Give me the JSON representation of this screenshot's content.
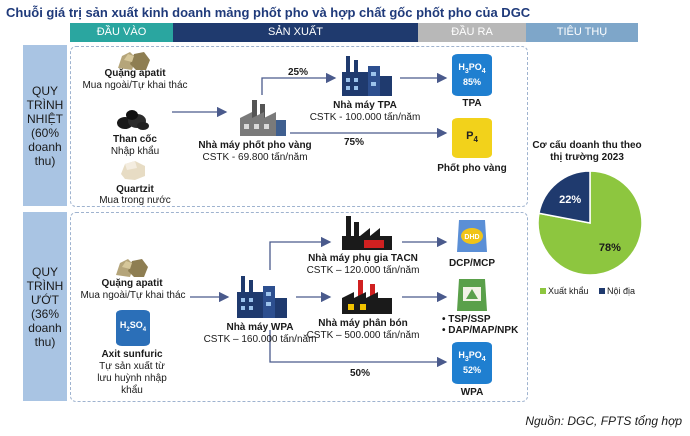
{
  "title": "Chuỗi giá trị sản xuất kinh doanh mảng phốt pho và hợp chất gốc phốt pho của DGC",
  "headers": [
    "ĐẦU VÀO",
    "SẢN XUẤT",
    "ĐẦU RA",
    "TIÊU THỤ"
  ],
  "colors": {
    "input": "#2aa6a0",
    "production": "#1f3a6e",
    "output": "#b8b8b8",
    "consumption": "#7ea6c9",
    "sidebar": "#a9c4e3",
    "arrow": "#4a5a8c",
    "pie_export": "#8dc63f",
    "pie_domestic": "#1f3a6e"
  },
  "thermal": {
    "label_lines": [
      "QUY",
      "TRÌNH",
      "NHIỆT",
      "(60%",
      "doanh",
      "thu)"
    ],
    "inputs": [
      {
        "name": "Quặng apatit",
        "desc": "Mua ngoài/Tự khai thác",
        "icon": "ore-icon"
      },
      {
        "name": "Than cốc",
        "desc": "Nhập khẩu",
        "icon": "coal-icon"
      },
      {
        "name": "Quartzit",
        "desc": "Mua trong nước",
        "icon": "quartzite-icon"
      }
    ],
    "plant": {
      "name": "Nhà máy phốt pho vàng",
      "capacity": "CSTK - 69.800 tấn/năm"
    },
    "tpa_plant": {
      "name": "Nhà máy TPA",
      "capacity": "CSTK - 100.000 tấn/năm"
    },
    "pct_tpa": "25%",
    "pct_p4": "75%",
    "outputs": {
      "tpa": {
        "formula": "H3PO4",
        "concentration": "85%",
        "name": "TPA"
      },
      "p4": {
        "formula": "P4",
        "name": "Phốt pho vàng"
      }
    }
  },
  "wet": {
    "label_lines": [
      "QUY",
      "TRÌNH",
      "ƯỚT",
      "(36%",
      "doanh",
      "thu)"
    ],
    "inputs": [
      {
        "name": "Quặng apatit",
        "desc": "Mua ngoài/Tự khai thác",
        "icon": "ore-icon"
      },
      {
        "name": "Axit sunfuric",
        "desc": "Tự sản xuất từ lưu huỳnh nhập khẩu",
        "icon": "h2so4-barrel-icon",
        "formula": "H2SO4"
      }
    ],
    "plant": {
      "name": "Nhà máy WPA",
      "capacity": "CSTK – 160.000 tấn/năm"
    },
    "feed_plant": {
      "name": "Nhà máy phụ gia TACN",
      "capacity": "CSTK – 120.000 tấn/năm"
    },
    "fert_plant": {
      "name": "Nhà máy phân bón",
      "capacity": "CSTK – 500.000 tấn/năm"
    },
    "pct_wpa": "50%",
    "outputs": {
      "dcp": {
        "name": "DCP/MCP",
        "bag": "DHD"
      },
      "fert": {
        "items": [
          "TSP/SSP",
          "DAP/MAP/NPK"
        ]
      },
      "wpa": {
        "formula": "H3PO4",
        "concentration": "52%",
        "name": "WPA"
      }
    }
  },
  "pie": {
    "title_lines": [
      "Cơ cấu doanh thu theo",
      "thị trường 2023"
    ],
    "legend": [
      "Xuất khẩu",
      "Nội địa"
    ]
  },
  "chart_data": {
    "type": "pie",
    "title": "Cơ cấu doanh thu theo thị trường 2023",
    "categories": [
      "Xuất khẩu",
      "Nội địa"
    ],
    "values": [
      78,
      22
    ],
    "labels": [
      "78%",
      "22%"
    ],
    "colors": [
      "#8dc63f",
      "#1f3a6e"
    ],
    "legend_position": "bottom"
  },
  "source": "Nguồn: DGC, FPTS tổng hợp"
}
